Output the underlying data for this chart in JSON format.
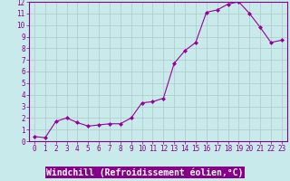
{
  "x": [
    0,
    1,
    2,
    3,
    4,
    5,
    6,
    7,
    8,
    9,
    10,
    11,
    12,
    13,
    14,
    15,
    16,
    17,
    18,
    19,
    20,
    21,
    22,
    23
  ],
  "y": [
    0.4,
    0.3,
    1.7,
    2.0,
    1.6,
    1.3,
    1.4,
    1.5,
    1.5,
    2.0,
    3.3,
    3.4,
    3.7,
    6.7,
    7.8,
    8.5,
    11.1,
    11.3,
    11.8,
    12.0,
    11.0,
    9.8,
    8.5,
    8.7
  ],
  "line_color": "#990099",
  "marker_color": "#990099",
  "bg_color": "#c8eaea",
  "grid_color": "#b0c8c8",
  "xlabel": "Windchill (Refroidissement éolien,°C)",
  "xlabel_bg": "#880088",
  "ylim": [
    0,
    12
  ],
  "xlim": [
    -0.5,
    23.5
  ],
  "yticks": [
    0,
    1,
    2,
    3,
    4,
    5,
    6,
    7,
    8,
    9,
    10,
    11,
    12
  ],
  "xticks": [
    0,
    1,
    2,
    3,
    4,
    5,
    6,
    7,
    8,
    9,
    10,
    11,
    12,
    13,
    14,
    15,
    16,
    17,
    18,
    19,
    20,
    21,
    22,
    23
  ],
  "tick_color": "#880088",
  "tick_fontsize": 5.5,
  "xlabel_fontsize": 7.0,
  "spine_color": "#880088"
}
